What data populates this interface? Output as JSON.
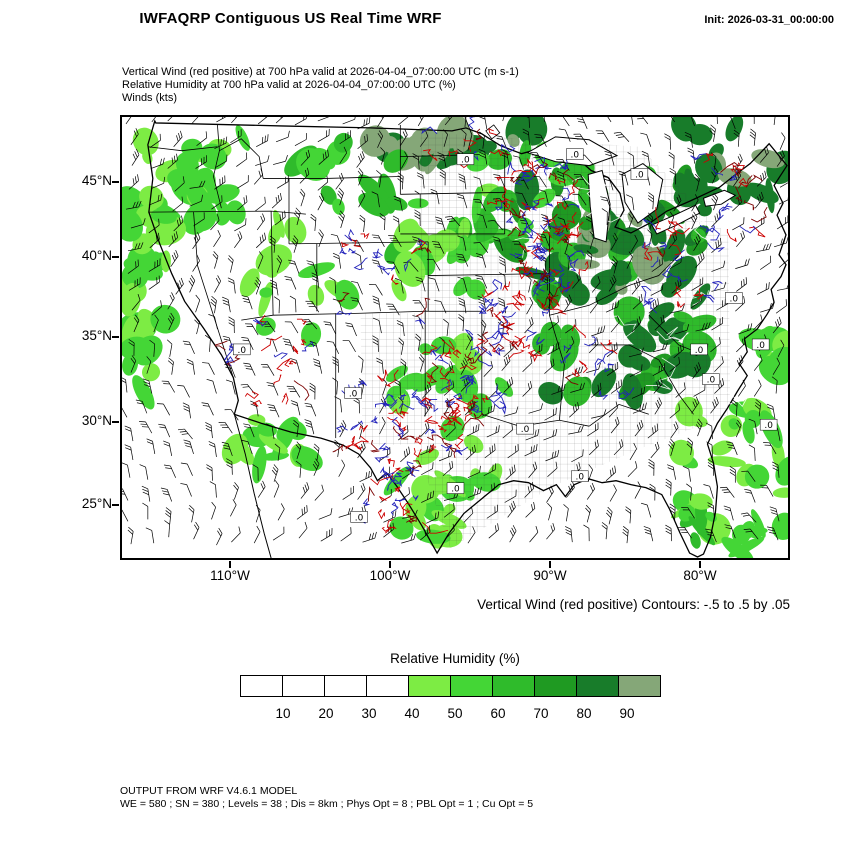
{
  "header": {
    "title": "IWFAQRP Contiguous US Real Time WRF",
    "init_label": "Init: 2026-03-31_00:00:00"
  },
  "subtitle": {
    "line1": "Vertical Wind (red positive) at 700 hPa valid at 2026-04-04_07:00:00 UTC   (m s-1)",
    "line2": "Relative Humidity at 700 hPa valid at 2026-04-04_07:00:00 UTC   (%)",
    "line3": "Winds   (kts)"
  },
  "map": {
    "y_ticks": [
      "45°N",
      "40°N",
      "35°N",
      "30°N",
      "25°N"
    ],
    "x_ticks": [
      "110°W",
      "100°W",
      "90°W",
      "80°W"
    ],
    "contour_caption": "Vertical Wind (red positive) Contours: -.5 to .5 by .05",
    "zero_label": ".0"
  },
  "legend": {
    "title": "Relative Humidity  (%)",
    "tick_labels": [
      "10",
      "20",
      "30",
      "40",
      "50",
      "60",
      "70",
      "80",
      "90"
    ],
    "colors": [
      "#ffffff",
      "#ffffff",
      "#ffffff",
      "#ffffff",
      "#7dec44",
      "#44d636",
      "#2fbb2b",
      "#1f9a22",
      "#187c2a",
      "#85a778"
    ]
  },
  "footer": {
    "line1": "OUTPUT FROM WRF V4.6.1 MODEL",
    "line2": "WE = 580 ; SN = 380 ; Levels = 38 ; Dis = 8km ; Phys Opt = 8 ; PBL Opt = 1 ; Cu Opt = 5"
  },
  "chart_data": {
    "type": "heatmap",
    "title": "IWFAQRP Contiguous US Real Time WRF",
    "region": "Contiguous US",
    "init": "2026-03-31_00:00:00",
    "fields": [
      {
        "name": "Vertical Wind (red positive)",
        "level": "700 hPa",
        "valid": "2026-04-04_07:00:00 UTC",
        "units": "m s-1",
        "style": "contours",
        "contours": {
          "min": -0.5,
          "max": 0.5,
          "interval": 0.05,
          "positive_color": "#cc0000",
          "negative_color": "#2222bb"
        }
      },
      {
        "name": "Relative Humidity",
        "level": "700 hPa",
        "valid": "2026-04-04_07:00:00 UTC",
        "units": "%",
        "style": "shaded",
        "levels": [
          10,
          20,
          30,
          40,
          50,
          60,
          70,
          80,
          90
        ],
        "colors": [
          "#ffffff",
          "#ffffff",
          "#ffffff",
          "#ffffff",
          "#7dec44",
          "#44d636",
          "#2fbb2b",
          "#1f9a22",
          "#187c2a",
          "#85a778"
        ]
      },
      {
        "name": "Winds",
        "units": "kts",
        "style": "barbs"
      }
    ],
    "x_axis": {
      "tick_labels": [
        "110°W",
        "100°W",
        "90°W",
        "80°W"
      ]
    },
    "y_axis": {
      "tick_labels": [
        "45°N",
        "40°N",
        "35°N",
        "30°N",
        "25°N"
      ]
    },
    "model": "WRF V4.6.1",
    "grid": {
      "WE": 580,
      "SN": 380,
      "Levels": 38,
      "Dis": "8km",
      "Phys_Opt": 8,
      "PBL_Opt": 1,
      "Cu_Opt": 5
    }
  }
}
